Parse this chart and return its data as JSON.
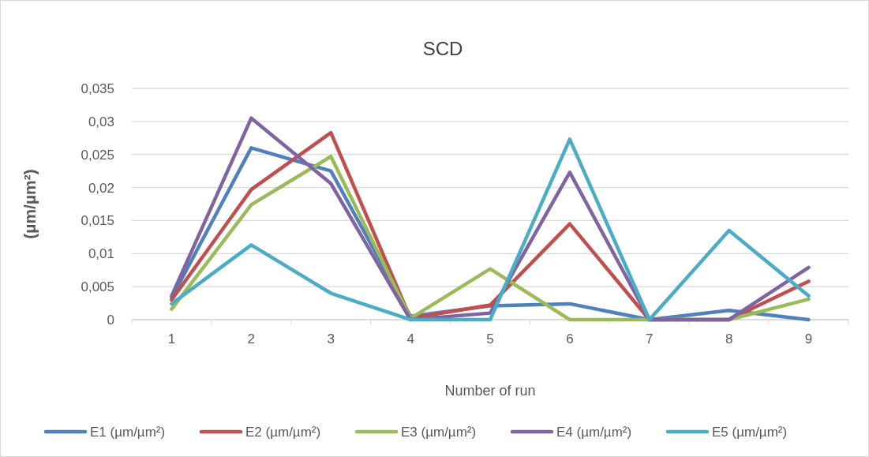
{
  "chart_data": {
    "type": "line",
    "title": "SCD",
    "xlabel": "Number of run",
    "ylabel": "(µm/µm²)",
    "categories": [
      "1",
      "2",
      "3",
      "4",
      "5",
      "6",
      "7",
      "8",
      "9"
    ],
    "series": [
      {
        "name": "E1 (µm/µm²)",
        "color": "#4f81bd",
        "values": [
          0.0033,
          0.026,
          0.0225,
          0.0005,
          0.0021,
          0.0024,
          0,
          0.0014,
          0
        ]
      },
      {
        "name": "E2 (µm/µm²)",
        "color": "#c0504d",
        "values": [
          0.003,
          0.0197,
          0.0283,
          0.0002,
          0.0022,
          0.0145,
          0,
          0,
          0.0058
        ]
      },
      {
        "name": "E3 (µm/µm²)",
        "color": "#9bbb59",
        "values": [
          0.0016,
          0.0174,
          0.0247,
          0.0002,
          0.0077,
          0,
          0,
          0,
          0.0031
        ]
      },
      {
        "name": "E4 (µm/µm²)",
        "color": "#8064a2",
        "values": [
          0.0036,
          0.0305,
          0.0206,
          0,
          0.001,
          0.0223,
          0,
          0,
          0.0079
        ]
      },
      {
        "name": "E5 (µm/µm²)",
        "color": "#4bacc6",
        "values": [
          0.0024,
          0.0113,
          0.004,
          0,
          0,
          0.0273,
          0,
          0.0135,
          0.0036
        ]
      }
    ],
    "ylim": [
      0,
      0.035
    ],
    "yticks": [
      {
        "value": 0,
        "label": "0"
      },
      {
        "value": 0.005,
        "label": "0,005"
      },
      {
        "value": 0.01,
        "label": "0,01"
      },
      {
        "value": 0.015,
        "label": "0,015"
      },
      {
        "value": 0.02,
        "label": "0,02"
      },
      {
        "value": 0.025,
        "label": "0,025"
      },
      {
        "value": 0.03,
        "label": "0,03"
      },
      {
        "value": 0.035,
        "label": "0,035"
      }
    ],
    "grid": "y",
    "legend": "bottom",
    "marker": "none",
    "line_style": "solid"
  }
}
